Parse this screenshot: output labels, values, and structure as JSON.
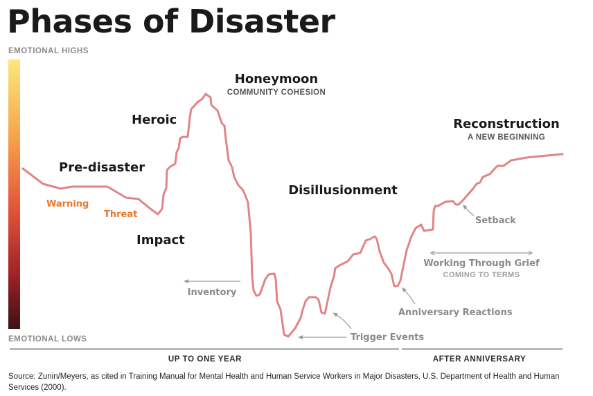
{
  "title": "Phases of Disaster",
  "axis": {
    "top_label": "EMOTIONAL HIGHS",
    "bottom_label": "EMOTIONAL LOWS",
    "gradient_colors": [
      "#fce97c",
      "#f5a04a",
      "#e2553a",
      "#9e2228",
      "#3a1214"
    ]
  },
  "curve_color": "#e08585",
  "phases": {
    "pre_disaster": "Pre-disaster",
    "warning": "Warning",
    "threat": "Threat",
    "impact": "Impact",
    "heroic": "Heroic",
    "honeymoon": "Honeymoon",
    "honeymoon_sub": "COMMUNITY COHESION",
    "disillusionment": "Disillusionment",
    "reconstruction": "Reconstruction",
    "reconstruction_sub": "A NEW BEGINNING"
  },
  "annotations": {
    "inventory": "Inventory",
    "trigger_events": "Trigger Events",
    "anniversary_reactions": "Anniversary Reactions",
    "working_through_grief": "Working Through Grief",
    "coming_to_terms": "COMING TO TERMS",
    "setback": "Setback"
  },
  "timeline": {
    "up_to_one_year": "UP TO ONE YEAR",
    "after_anniversary": "AFTER ANNIVERSARY"
  },
  "colors": {
    "accent_orange": "#e8782c",
    "dark_text": "#1a1a1a",
    "gray_text": "#8a8a8a"
  },
  "source": "Source: Zunin/Meyers, as cited in Training Manual for Mental Health and Human Service Workers in Major Disasters, U.S. Department of Health and Human Services (2000)."
}
